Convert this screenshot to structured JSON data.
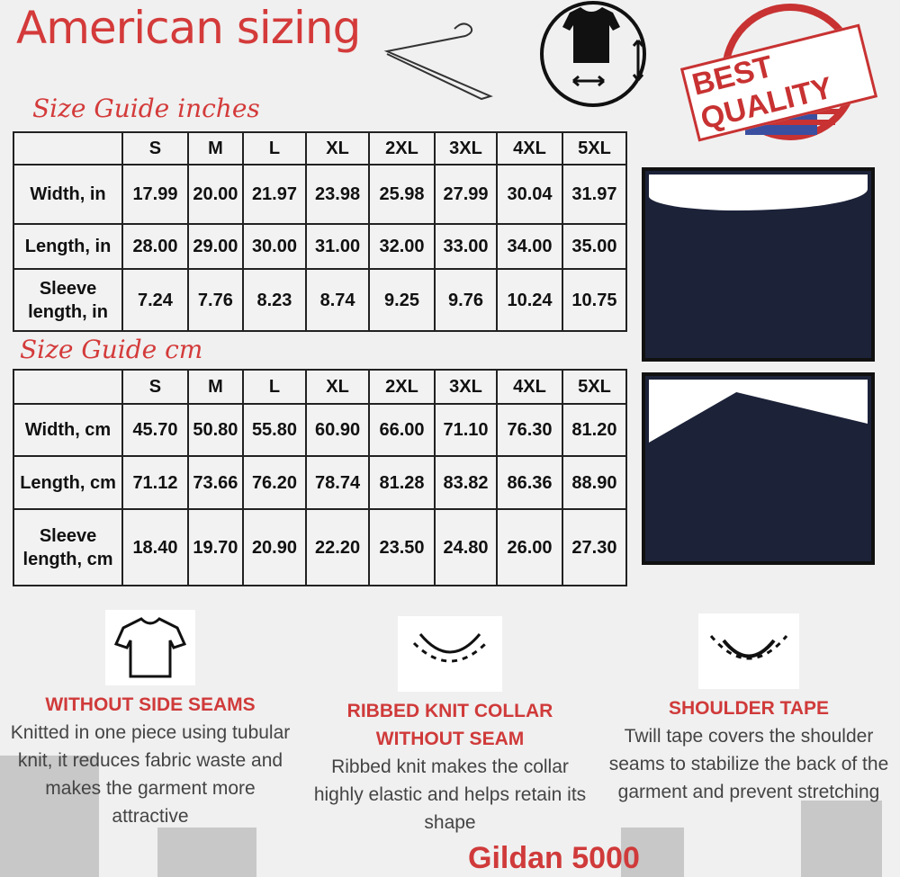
{
  "title": "American sizing",
  "badge": "BEST QUALITY",
  "inches": {
    "heading": "Size Guide inches",
    "sizes": [
      "S",
      "M",
      "L",
      "XL",
      "2XL",
      "3XL",
      "4XL",
      "5XL"
    ],
    "rows": [
      {
        "label": "Width, in",
        "values": [
          "17.99",
          "20.00",
          "21.97",
          "23.98",
          "25.98",
          "27.99",
          "30.04",
          "31.97"
        ]
      },
      {
        "label": "Length, in",
        "values": [
          "28.00",
          "29.00",
          "30.00",
          "31.00",
          "32.00",
          "33.00",
          "34.00",
          "35.00"
        ]
      },
      {
        "label": "Sleeve length, in",
        "values": [
          "7.24",
          "7.76",
          "8.23",
          "8.74",
          "9.25",
          "9.76",
          "10.24",
          "10.75"
        ]
      }
    ]
  },
  "cm": {
    "heading": "Size Guide cm",
    "sizes": [
      "S",
      "M",
      "L",
      "XL",
      "2XL",
      "3XL",
      "4XL",
      "5XL"
    ],
    "rows": [
      {
        "label": "Width, cm",
        "values": [
          "45.70",
          "50.80",
          "55.80",
          "60.90",
          "66.00",
          "71.10",
          "76.30",
          "81.20"
        ]
      },
      {
        "label": "Length, cm",
        "values": [
          "71.12",
          "73.66",
          "76.20",
          "78.74",
          "81.28",
          "83.82",
          "86.36",
          "88.90"
        ]
      },
      {
        "label": "Sleeve length, cm",
        "values": [
          "18.40",
          "19.70",
          "20.90",
          "22.20",
          "23.50",
          "24.80",
          "26.00",
          "27.30"
        ]
      }
    ]
  },
  "features": [
    {
      "title": "WITHOUT SIDE SEAMS",
      "body": "Knitted in one piece using tubular knit, it reduces fabric waste and makes the garment more attractive",
      "icon": "tshirt-icon"
    },
    {
      "title": "RIBBED KNIT COLLAR WITHOUT SEAM",
      "body": "Ribbed knit makes the collar highly elastic and helps retain its shape",
      "icon": "collar-icon"
    },
    {
      "title": "SHOULDER TAPE",
      "body": "Twill tape covers the shoulder seams to stabilize the back of the garment and prevent stretching",
      "icon": "shoulder-tape-icon"
    }
  ],
  "footer": "Gildan 5000",
  "colors": {
    "accent": "#d03a3a",
    "fabric": "#1c2238"
  }
}
